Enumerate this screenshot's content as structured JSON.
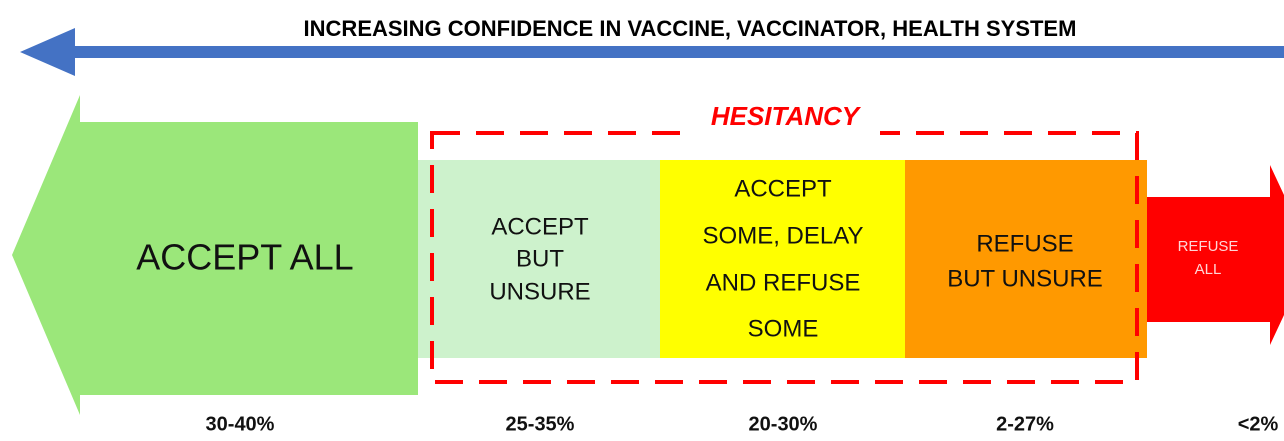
{
  "header": {
    "title": "INCREASING CONFIDENCE IN VACCINE, VACCINATOR, HEALTH SYSTEM"
  },
  "hesitancy_label": "HESITANCY",
  "segments": [
    {
      "lines": [
        "ACCEPT ALL"
      ],
      "percent": "30-40%"
    },
    {
      "lines": [
        "ACCEPT",
        "BUT",
        "UNSURE"
      ],
      "percent": "25-35%"
    },
    {
      "lines": [
        "ACCEPT",
        "SOME, DELAY",
        "AND REFUSE",
        "SOME"
      ],
      "percent": "20-30%"
    },
    {
      "lines": [
        "REFUSE",
        "BUT UNSURE"
      ],
      "percent": "2-27%"
    },
    {
      "lines": [
        "REFUSE",
        "ALL"
      ],
      "percent": "<2%"
    }
  ]
}
